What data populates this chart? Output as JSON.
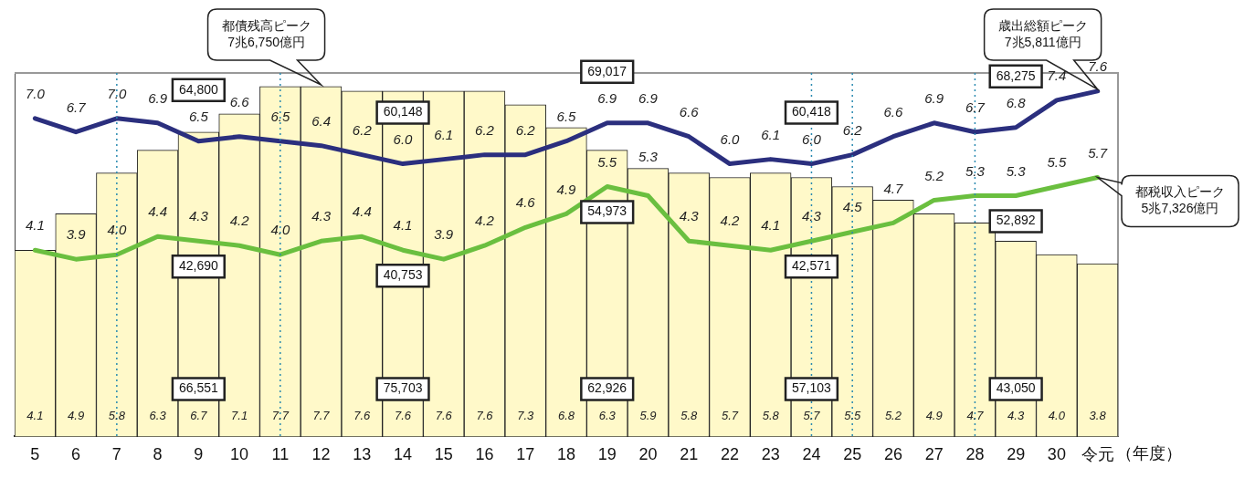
{
  "chart_data": {
    "type": "bar",
    "xlabel": "（年度）",
    "categories": [
      "5",
      "6",
      "7",
      "8",
      "9",
      "10",
      "11",
      "12",
      "13",
      "14",
      "15",
      "16",
      "17",
      "18",
      "19",
      "20",
      "21",
      "22",
      "23",
      "24",
      "25",
      "26",
      "27",
      "28",
      "29",
      "30",
      "令元"
    ],
    "series": [
      {
        "color": "#fff9c9",
        "values": [
          4.1,
          4.9,
          5.8,
          6.3,
          6.7,
          7.1,
          7.7,
          7.7,
          7.6,
          7.6,
          7.6,
          7.6,
          7.3,
          6.8,
          6.3,
          5.9,
          5.8,
          5.7,
          5.8,
          5.7,
          5.5,
          5.2,
          4.9,
          4.7,
          4.3,
          4.0,
          3.8
        ],
        "value_labels": [
          "4.1",
          "4.9",
          "5.8",
          "6.3",
          "6.7",
          "7.1",
          "7.7",
          "7.7",
          "7.6",
          "7.6",
          "7.6",
          "7.6",
          "7.3",
          "6.8",
          "6.3",
          "5.9",
          "5.8",
          "5.7",
          "5.8",
          "5.7",
          "5.5",
          "5.2",
          "4.9",
          "4.7",
          "4.3",
          "4.0",
          "3.8"
        ]
      },
      {
        "type": "line",
        "color": "#2b2f7e",
        "values": [
          7.0,
          6.7,
          7.0,
          6.9,
          6.5,
          6.6,
          6.5,
          6.4,
          6.2,
          6.0,
          6.1,
          6.2,
          6.2,
          6.5,
          6.9,
          6.9,
          6.6,
          6.0,
          6.1,
          6.0,
          6.2,
          6.6,
          6.9,
          6.7,
          6.8,
          7.4,
          7.6
        ],
        "value_labels": [
          "7.0",
          "6.7",
          "7.0",
          "6.9",
          "6.5",
          "6.6",
          "6.5",
          "6.4",
          "6.2",
          "6.0",
          "6.1",
          "6.2",
          "6.2",
          "6.5",
          "6.9",
          "6.9",
          "6.6",
          "6.0",
          "6.1",
          "6.0",
          "6.2",
          "6.6",
          "6.9",
          "6.7",
          "6.8",
          "7.4",
          "7.6"
        ]
      },
      {
        "type": "line",
        "color": "#6abf3f",
        "values": [
          4.1,
          3.9,
          4.0,
          4.4,
          4.3,
          4.2,
          4.0,
          4.3,
          4.4,
          4.1,
          3.9,
          4.2,
          4.6,
          4.9,
          5.5,
          5.3,
          4.3,
          4.2,
          4.1,
          4.3,
          4.5,
          4.7,
          5.2,
          5.3,
          5.3,
          5.5,
          5.7
        ],
        "value_labels": [
          "4.1",
          "3.9",
          "4.0",
          "4.4",
          "4.3",
          "4.2",
          "4.0",
          "4.3",
          "4.4",
          "4.1",
          "3.9",
          "4.2",
          "4.6",
          "4.9",
          "5.5",
          "5.3",
          "4.3",
          "4.2",
          "4.1",
          "4.3",
          "4.5",
          "4.7",
          "5.2",
          "5.3",
          "5.3",
          "5.5",
          "5.7"
        ]
      }
    ],
    "grid": false,
    "legend": false,
    "tick_labels": "x",
    "marker": "none",
    "line_style": "solid",
    "ref_lines": [
      {
        "axis": "x",
        "value": "7",
        "color": "#2a8ab0",
        "line_style": "dotted"
      },
      {
        "axis": "x",
        "value": "11",
        "color": "#2a8ab0",
        "line_style": "dotted"
      },
      {
        "axis": "x",
        "value": "24",
        "color": "#2a8ab0",
        "line_style": "dotted"
      },
      {
        "axis": "x",
        "value": "25",
        "color": "#2a8ab0",
        "line_style": "dotted"
      },
      {
        "axis": "x",
        "value": "28",
        "color": "#2a8ab0",
        "line_style": "dotted"
      }
    ],
    "annotations": [
      "64,800",
      "42,690",
      "66,551",
      "60,148",
      "40,753",
      "75,703",
      "69,017",
      "54,973",
      "62,926",
      "60,418",
      "42,571",
      "57,103",
      "68,275",
      "52,892",
      "43,050",
      "歳出総額ピーク\n7兆5,811億円",
      "都税収入ピーク\n5兆7,326億円",
      "都債残高ピーク\n7兆6,750億円"
    ]
  }
}
